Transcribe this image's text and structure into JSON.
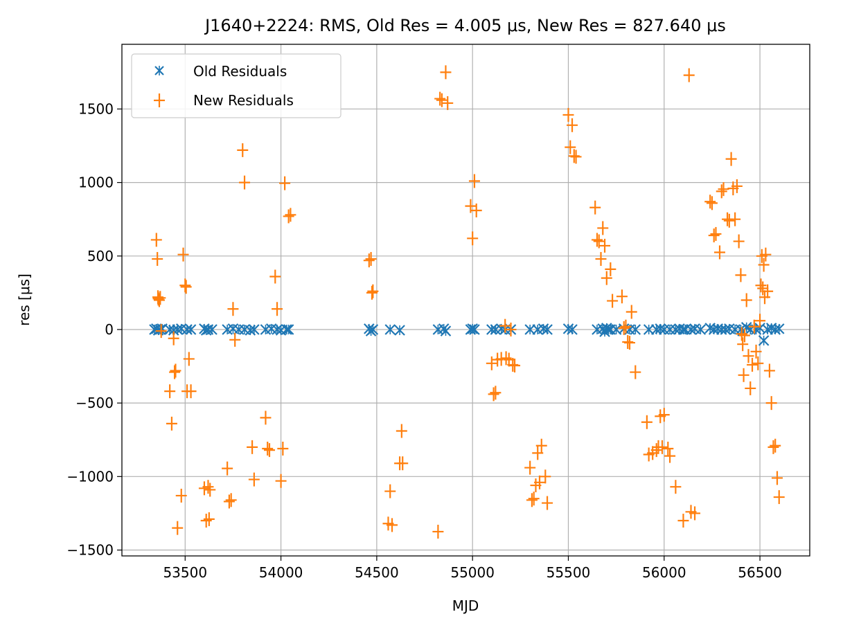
{
  "chart_data": {
    "type": "scatter",
    "title": "J1640+2224: RMS, Old Res = 4.005 μs, New Res = 827.640 μs",
    "xlabel": "MJD",
    "ylabel": "res [μs]",
    "xlim": [
      53170,
      56760
    ],
    "ylim": [
      -1540,
      1940
    ],
    "xticks": [
      53500,
      54000,
      54500,
      55000,
      55500,
      56000,
      56500
    ],
    "yticks": [
      -1500,
      -1000,
      -500,
      0,
      500,
      1000,
      1500
    ],
    "xtick_labels": [
      "53500",
      "54000",
      "54500",
      "55000",
      "55500",
      "56000",
      "56500"
    ],
    "ytick_labels": [
      "−1500",
      "−1000",
      "−500",
      "0",
      "500",
      "1000",
      "1500"
    ],
    "grid": true,
    "legend": {
      "position": "upper-left",
      "entries": [
        {
          "label": "Old Residuals",
          "color": "#1f77b4",
          "marker": "x"
        },
        {
          "label": "New Residuals",
          "color": "#ff7f0e",
          "marker": "+"
        }
      ]
    },
    "series": [
      {
        "name": "Old Residuals",
        "color": "#1f77b4",
        "marker": "x",
        "x": [
          53340,
          53350,
          53360,
          53370,
          53380,
          53420,
          53440,
          53460,
          53480,
          53510,
          53530,
          53600,
          53610,
          53620,
          53640,
          53720,
          53750,
          53780,
          53810,
          53840,
          53860,
          53920,
          53950,
          53980,
          54000,
          54030,
          54040,
          54460,
          54470,
          54480,
          54570,
          54620,
          54820,
          54850,
          54860,
          54990,
          55000,
          55010,
          55100,
          55120,
          55150,
          55170,
          55200,
          55300,
          55340,
          55370,
          55390,
          55500,
          55520,
          55650,
          55680,
          55690,
          55700,
          55710,
          55720,
          55750,
          55790,
          55820,
          55850,
          55920,
          55960,
          55980,
          56000,
          56030,
          56060,
          56080,
          56100,
          56110,
          56140,
          56160,
          56190,
          56240,
          56260,
          56280,
          56300,
          56320,
          56340,
          56370,
          56400,
          56410,
          56430,
          56450,
          56480,
          56500,
          56520,
          56540,
          56560,
          56580,
          56600
        ],
        "y": [
          0,
          5,
          -5,
          0,
          5,
          0,
          -5,
          0,
          5,
          0,
          0,
          5,
          -5,
          0,
          0,
          0,
          5,
          0,
          0,
          -5,
          0,
          0,
          5,
          0,
          -5,
          0,
          0,
          5,
          -10,
          0,
          0,
          -5,
          0,
          5,
          -10,
          0,
          5,
          0,
          0,
          0,
          5,
          0,
          0,
          0,
          0,
          5,
          0,
          5,
          0,
          0,
          5,
          -15,
          10,
          0,
          0,
          0,
          5,
          0,
          0,
          0,
          0,
          5,
          0,
          0,
          0,
          5,
          0,
          0,
          0,
          5,
          0,
          10,
          0,
          5,
          0,
          0,
          5,
          0,
          0,
          -10,
          15,
          0,
          0,
          10,
          -75,
          0,
          10,
          0,
          5
        ]
      },
      {
        "name": "New Residuals",
        "color": "#ff7f0e",
        "marker": "+",
        "x": [
          53350,
          53355,
          53358,
          53360,
          53365,
          53370,
          53375,
          53420,
          53430,
          53440,
          53445,
          53450,
          53460,
          53480,
          53490,
          53500,
          53505,
          53510,
          53520,
          53530,
          53600,
          53610,
          53620,
          53625,
          53630,
          53720,
          53730,
          53740,
          53750,
          53760,
          53800,
          53810,
          53850,
          53860,
          53920,
          53930,
          53940,
          53970,
          53980,
          54000,
          54010,
          54020,
          54040,
          54050,
          54460,
          54470,
          54475,
          54480,
          54560,
          54570,
          54580,
          54620,
          54630,
          54635,
          54820,
          54830,
          54840,
          54860,
          54870,
          54990,
          55000,
          55010,
          55020,
          55100,
          55110,
          55120,
          55130,
          55150,
          55170,
          55175,
          55190,
          55200,
          55210,
          55220,
          55300,
          55310,
          55320,
          55330,
          55340,
          55350,
          55360,
          55380,
          55390,
          55500,
          55510,
          55520,
          55530,
          55540,
          55640,
          55650,
          55660,
          55670,
          55680,
          55690,
          55700,
          55720,
          55730,
          55780,
          55790,
          55800,
          55810,
          55820,
          55830,
          55850,
          55910,
          55920,
          55940,
          55960,
          55970,
          55980,
          55990,
          56000,
          56020,
          56030,
          56060,
          56100,
          56130,
          56140,
          56160,
          56240,
          56250,
          56260,
          56270,
          56290,
          56300,
          56310,
          56330,
          56340,
          56350,
          56360,
          56370,
          56380,
          56390,
          56400,
          56405,
          56410,
          56415,
          56420,
          56430,
          56440,
          56450,
          56460,
          56470,
          56480,
          56490,
          56500,
          56505,
          56510,
          56515,
          56520,
          56525,
          56530,
          56540,
          56550,
          56560,
          56570,
          56580,
          56590,
          56600
        ],
        "y": [
          610,
          480,
          220,
          210,
          200,
          215,
          -10,
          -420,
          -640,
          -60,
          -290,
          -280,
          -1350,
          -1130,
          510,
          300,
          290,
          -420,
          -200,
          -420,
          -1080,
          -1300,
          -1070,
          -1290,
          -1090,
          -945,
          -1170,
          -1160,
          140,
          -70,
          1220,
          1000,
          -800,
          -1020,
          -600,
          -810,
          -820,
          360,
          140,
          -1030,
          -810,
          995,
          770,
          780,
          470,
          480,
          250,
          260,
          -1320,
          -1100,
          -1330,
          -910,
          -690,
          -910,
          -1375,
          1570,
          1560,
          1750,
          1540,
          840,
          620,
          1010,
          810,
          -230,
          -440,
          -430,
          -205,
          -200,
          25,
          -195,
          -205,
          0,
          -240,
          -245,
          -940,
          -1160,
          -1150,
          -1060,
          -840,
          -1040,
          -790,
          -1000,
          -1180,
          1460,
          1240,
          1390,
          1180,
          1175,
          830,
          610,
          600,
          480,
          690,
          570,
          350,
          410,
          195,
          225,
          10,
          20,
          -85,
          -90,
          120,
          -290,
          -630,
          -850,
          -840,
          -820,
          -800,
          -590,
          -800,
          -580,
          -810,
          -860,
          -1070,
          -1300,
          1730,
          -1240,
          -1250,
          870,
          860,
          640,
          650,
          525,
          940,
          955,
          750,
          740,
          1160,
          960,
          750,
          975,
          600,
          370,
          -30,
          -100,
          -310,
          -40,
          200,
          -180,
          -400,
          -240,
          20,
          -150,
          -230,
          60,
          300,
          500,
          280,
          440,
          220,
          510,
          260,
          -280,
          -500,
          -800,
          -790,
          -1010,
          -1140
        ]
      }
    ]
  }
}
